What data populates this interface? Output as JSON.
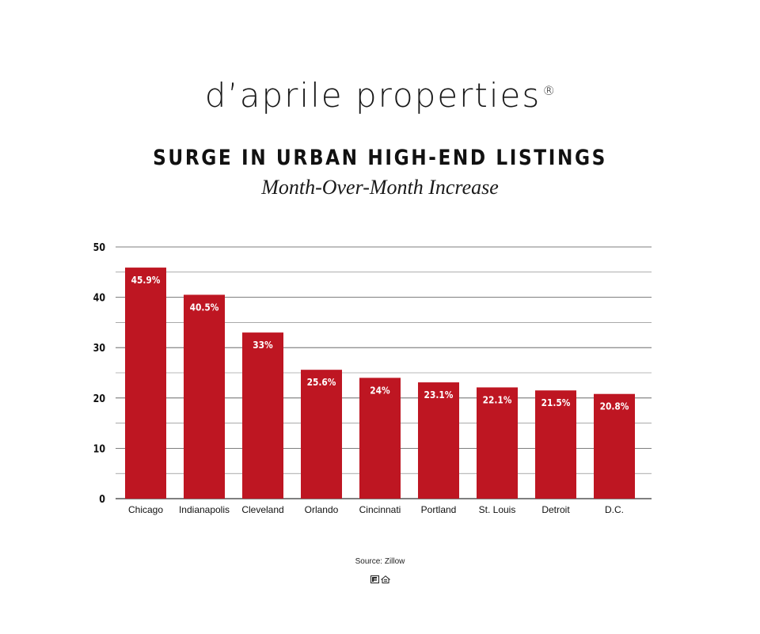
{
  "brand": {
    "name": "d’aprile properties",
    "registered": "®"
  },
  "chart_data": {
    "type": "bar",
    "title": "SURGE IN URBAN HIGH-END LISTINGS",
    "subtitle": "Month-Over-Month Increase",
    "categories": [
      "Chicago",
      "Indianapolis",
      "Cleveland",
      "Orlando",
      "Cincinnati",
      "Portland",
      "St. Louis",
      "Detroit",
      "D.C."
    ],
    "values": [
      45.9,
      40.5,
      33,
      25.6,
      24,
      23.1,
      22.1,
      21.5,
      20.8
    ],
    "data_labels": [
      "45.9%",
      "40.5%",
      "33%",
      "25.6%",
      "24%",
      "23.1%",
      "22.1%",
      "21.5%",
      "20.8%"
    ],
    "ylim": [
      0,
      50
    ],
    "yticks": [
      0,
      10,
      20,
      30,
      40,
      50
    ],
    "minor_gridlines": true,
    "grid": true,
    "bar_color": "#be1622",
    "label_color": "#ffffff"
  },
  "source": "Source: Zillow",
  "footer_icons": [
    "realtor-logo-icon",
    "equal-housing-icon"
  ]
}
